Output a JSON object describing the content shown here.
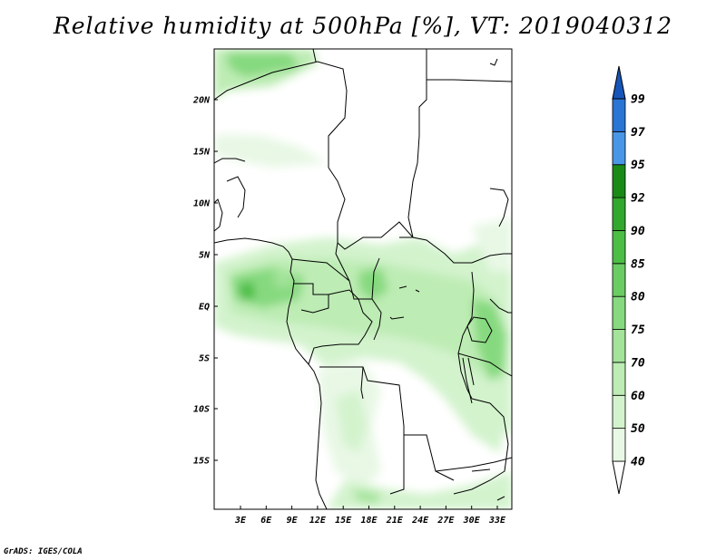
{
  "title": "Relative humidity at 500hPa [%], VT: 2019040312",
  "credit": "GrADS: IGES/COLA",
  "map": {
    "lat_labels": [
      "20N",
      "15N",
      "10N",
      "5N",
      "EQ",
      "5S",
      "10S",
      "15S"
    ],
    "lon_labels": [
      "3E",
      "6E",
      "9E",
      "12E",
      "15E",
      "18E",
      "21E",
      "24E",
      "27E",
      "30E",
      "33E"
    ],
    "variable": "Relative humidity",
    "level": "500hPa",
    "units": "%"
  },
  "colorbar": {
    "levels": [
      "40",
      "50",
      "60",
      "70",
      "75",
      "80",
      "85",
      "90",
      "92",
      "95",
      "97",
      "99"
    ],
    "colors": [
      "#ffffff",
      "#e8f8e5",
      "#d3f3cd",
      "#bdecb4",
      "#a3e39a",
      "#86d97f",
      "#6acc62",
      "#4cbd45",
      "#32a82d",
      "#1a8a17",
      "#4a96e6",
      "#2a74d4",
      "#1656b8"
    ]
  }
}
